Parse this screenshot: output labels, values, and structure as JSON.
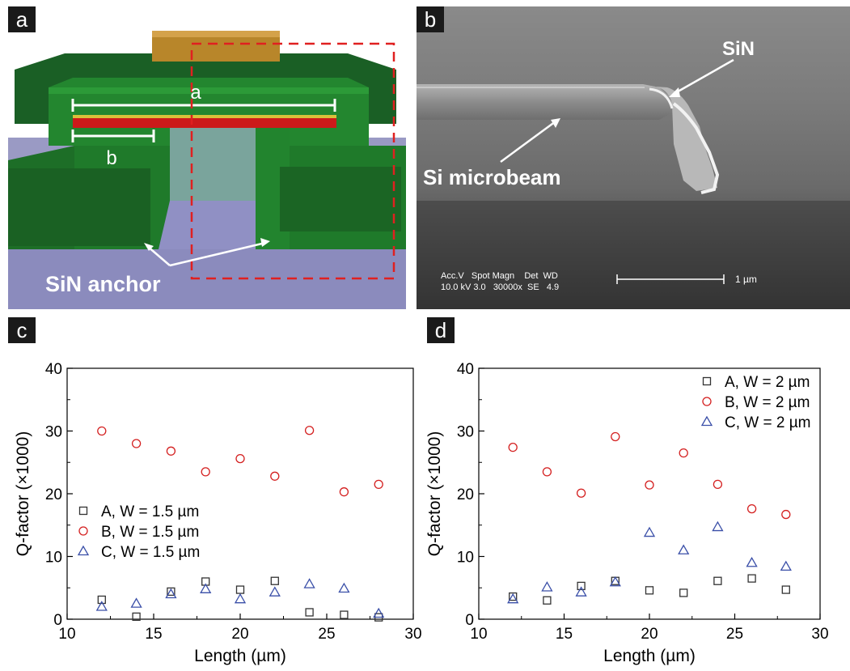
{
  "panel_a": {
    "tag": "a",
    "label_a": "a",
    "label_b": "b",
    "anchor_label": "SiN anchor"
  },
  "panel_b": {
    "tag": "b",
    "sin_label": "SiN",
    "beam_label": "Si microbeam",
    "sem_line1": "Acc.V   Spot Magn    Det  WD",
    "sem_line2": "10.0 kV 3.0   30000x  SE   4.9",
    "scale_label": "1 µm"
  },
  "panel_c": {
    "tag": "c"
  },
  "panel_d": {
    "tag": "d"
  },
  "colors": {
    "series_A": "#333333",
    "series_B": "#d42020",
    "series_C": "#3a4fa8",
    "sin_green": "#1f7a2a",
    "gold": "#b8862a",
    "red_layer": "#cc1a1a",
    "substrate": "#8f8fbf"
  },
  "chart_data": [
    {
      "id": "c",
      "type": "scatter",
      "xlabel": "Length (µm)",
      "ylabel": "Q-factor (×1000)",
      "xlim": [
        10,
        30
      ],
      "ylim": [
        0,
        40
      ],
      "xticks": [
        10,
        15,
        20,
        25,
        30
      ],
      "yticks": [
        0,
        10,
        20,
        30,
        40
      ],
      "legend_position": "lower-left",
      "series": [
        {
          "name": "A, W = 1.5 µm",
          "marker": "square",
          "color": "#333333",
          "x": [
            12,
            14,
            16,
            18,
            20,
            22,
            24,
            26,
            28
          ],
          "y": [
            3.1,
            0.4,
            4.4,
            6.0,
            4.7,
            6.1,
            1.1,
            0.7,
            0.3
          ]
        },
        {
          "name": "B, W = 1.5 µm",
          "marker": "circle",
          "color": "#d42020",
          "x": [
            12,
            14,
            16,
            18,
            20,
            22,
            24,
            26,
            28
          ],
          "y": [
            30.0,
            28.0,
            26.8,
            23.5,
            25.6,
            22.8,
            30.1,
            20.3,
            21.5
          ]
        },
        {
          "name": "C, W = 1.5 µm",
          "marker": "triangle",
          "color": "#3a4fa8",
          "x": [
            12,
            14,
            16,
            18,
            20,
            22,
            24,
            26,
            28
          ],
          "y": [
            2.0,
            2.5,
            4.0,
            4.8,
            3.2,
            4.3,
            5.6,
            4.9,
            0.9
          ]
        }
      ]
    },
    {
      "id": "d",
      "type": "scatter",
      "xlabel": "Length (µm)",
      "ylabel": "Q-factor (×1000)",
      "xlim": [
        10,
        30
      ],
      "ylim": [
        0,
        40
      ],
      "xticks": [
        10,
        15,
        20,
        25,
        30
      ],
      "yticks": [
        0,
        10,
        20,
        30,
        40
      ],
      "legend_position": "top-right",
      "series": [
        {
          "name": "A, W = 2 µm",
          "marker": "square",
          "color": "#333333",
          "x": [
            12,
            14,
            16,
            18,
            20,
            22,
            24,
            26,
            28
          ],
          "y": [
            3.6,
            3.0,
            5.3,
            6.1,
            4.6,
            4.2,
            6.1,
            6.5,
            4.7
          ]
        },
        {
          "name": "B, W = 2 µm",
          "marker": "circle",
          "color": "#d42020",
          "x": [
            12,
            14,
            16,
            18,
            20,
            22,
            24,
            26,
            28
          ],
          "y": [
            27.4,
            23.5,
            20.1,
            29.1,
            21.4,
            26.5,
            21.5,
            17.6,
            16.7
          ]
        },
        {
          "name": "C, W = 2 µm",
          "marker": "triangle",
          "color": "#3a4fa8",
          "x": [
            12,
            14,
            16,
            18,
            20,
            22,
            24,
            26,
            28
          ],
          "y": [
            3.2,
            5.1,
            4.3,
            5.9,
            13.8,
            11.0,
            14.7,
            9.0,
            8.4
          ]
        }
      ]
    }
  ]
}
